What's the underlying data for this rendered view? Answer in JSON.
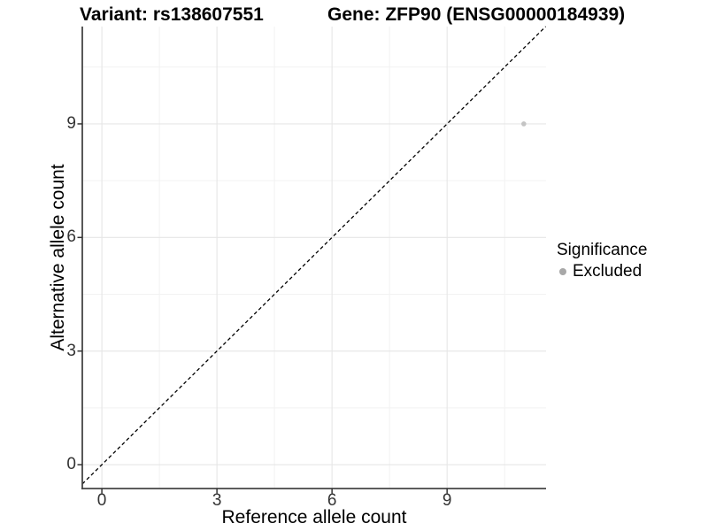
{
  "chart_data": {
    "type": "scatter",
    "titles": {
      "left": "Variant: rs138607551",
      "right": "Gene: ZFP90 (ENSG00000184939)"
    },
    "xlabel": "Reference allele count",
    "ylabel": "Alternative allele count",
    "xlim": [
      -0.51,
      11.58
    ],
    "ylim": [
      -0.63,
      11.57
    ],
    "x_major_ticks": [
      0,
      3,
      6,
      9
    ],
    "y_major_ticks": [
      0,
      3,
      6,
      9
    ],
    "x_minor_ticks": [
      1.5,
      4.5,
      7.5,
      10.5
    ],
    "y_minor_ticks": [
      1.5,
      4.5,
      7.5,
      10.5
    ],
    "grid": true,
    "points": [
      {
        "x": 11,
        "y": 9,
        "series": "Excluded"
      }
    ],
    "identity_line": {
      "equation": "y = x",
      "style": "dashed",
      "color": "#000000"
    },
    "legend": {
      "title": "Significance",
      "position": "right",
      "items": [
        {
          "label": "Excluded",
          "color": "#a8a8a8"
        }
      ]
    },
    "colors": {
      "point": "#c4c4c4",
      "grid_major": "#e6e6e6",
      "grid_minor": "#f2f2f2",
      "axis_line": "#454545",
      "tick_mark": "#333333",
      "tick_label": "#333333",
      "background": "#ffffff"
    }
  }
}
